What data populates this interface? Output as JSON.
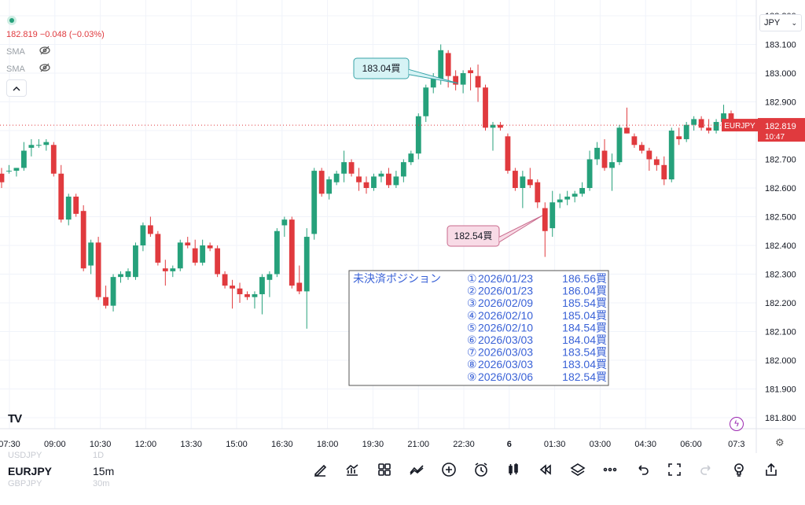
{
  "header": {
    "price_change": "182.819 −0.048 (−0.03%)",
    "indicators": [
      {
        "label": "SMA"
      },
      {
        "label": "SMA"
      }
    ],
    "currency": "JPY"
  },
  "chart_data": {
    "type": "candlestick",
    "symbol": "EURJPY",
    "interval": "15m",
    "y_ticks": [
      "183.200",
      "183.100",
      "183.000",
      "182.900",
      "182.800",
      "182.700",
      "182.600",
      "182.500",
      "182.400",
      "182.300",
      "182.200",
      "182.100",
      "182.000",
      "181.900",
      "181.800"
    ],
    "ylim": [
      181.755,
      183.255
    ],
    "x_ticks": [
      "07:30",
      "09:00",
      "10:30",
      "12:00",
      "13:30",
      "15:00",
      "16:30",
      "18:00",
      "19:30",
      "21:00",
      "22:30",
      "6",
      "01:30",
      "03:00",
      "04:30",
      "06:00",
      "07:3"
    ],
    "current_price": {
      "symbol": "EURJPY",
      "value": "182.819",
      "countdown": "10:47",
      "price": 182.819
    },
    "callouts": [
      {
        "label": "183.04買",
        "price": 183.04,
        "color": "#d6f3f5",
        "border": "#38a3a8"
      },
      {
        "label": "182.54買",
        "price": 182.54,
        "color": "#f8dbe6",
        "border": "#c86a8c"
      }
    ],
    "candles": [
      [
        182.65,
        182.67,
        182.6,
        182.62
      ],
      [
        182.66,
        182.68,
        182.65,
        182.66
      ],
      [
        182.66,
        182.67,
        182.64,
        182.67
      ],
      [
        182.67,
        182.76,
        182.66,
        182.73
      ],
      [
        182.74,
        182.77,
        182.71,
        182.75
      ],
      [
        182.75,
        182.77,
        182.74,
        182.75
      ],
      [
        182.75,
        182.77,
        182.73,
        182.76
      ],
      [
        182.75,
        182.76,
        182.64,
        182.65
      ],
      [
        182.65,
        182.68,
        182.48,
        182.49
      ],
      [
        182.49,
        182.58,
        182.47,
        182.57
      ],
      [
        182.57,
        182.58,
        182.5,
        182.51
      ],
      [
        182.52,
        182.54,
        182.31,
        182.32
      ],
      [
        182.33,
        182.42,
        182.3,
        182.41
      ],
      [
        182.41,
        182.43,
        182.21,
        182.22
      ],
      [
        182.22,
        182.26,
        182.18,
        182.19
      ],
      [
        182.19,
        182.3,
        182.17,
        182.29
      ],
      [
        182.29,
        182.31,
        182.27,
        182.3
      ],
      [
        182.29,
        182.32,
        182.28,
        182.31
      ],
      [
        182.29,
        182.41,
        182.28,
        182.4
      ],
      [
        182.4,
        182.48,
        182.38,
        182.47
      ],
      [
        182.47,
        182.5,
        182.43,
        182.44
      ],
      [
        182.44,
        182.45,
        182.33,
        182.34
      ],
      [
        182.32,
        182.35,
        182.26,
        182.31
      ],
      [
        182.31,
        182.33,
        182.29,
        182.32
      ],
      [
        182.32,
        182.42,
        182.31,
        182.41
      ],
      [
        182.41,
        182.43,
        182.39,
        182.4
      ],
      [
        182.39,
        182.42,
        182.33,
        182.34
      ],
      [
        182.34,
        182.42,
        182.33,
        182.4
      ],
      [
        182.4,
        182.41,
        182.38,
        182.39
      ],
      [
        182.39,
        182.4,
        182.29,
        182.3
      ],
      [
        182.3,
        182.31,
        182.25,
        182.26
      ],
      [
        182.26,
        182.28,
        182.18,
        182.25
      ],
      [
        182.25,
        182.27,
        182.2,
        182.23
      ],
      [
        182.23,
        182.24,
        182.21,
        182.22
      ],
      [
        182.22,
        182.24,
        182.18,
        182.23
      ],
      [
        182.23,
        182.3,
        182.16,
        182.29
      ],
      [
        182.28,
        182.31,
        182.22,
        182.3
      ],
      [
        182.3,
        182.46,
        182.29,
        182.45
      ],
      [
        182.47,
        182.5,
        182.43,
        182.49
      ],
      [
        182.49,
        182.5,
        182.25,
        182.26
      ],
      [
        182.27,
        182.33,
        182.23,
        182.24
      ],
      [
        182.24,
        182.46,
        182.11,
        182.43
      ],
      [
        182.44,
        182.67,
        182.42,
        182.66
      ],
      [
        182.66,
        182.67,
        182.57,
        182.58
      ],
      [
        182.58,
        182.64,
        182.56,
        182.63
      ],
      [
        182.62,
        182.66,
        182.61,
        182.65
      ],
      [
        182.65,
        182.73,
        182.62,
        182.69
      ],
      [
        182.69,
        182.7,
        182.64,
        182.65
      ],
      [
        182.64,
        182.67,
        182.59,
        182.62
      ],
      [
        182.62,
        182.64,
        182.58,
        182.6
      ],
      [
        182.6,
        182.65,
        182.59,
        182.64
      ],
      [
        182.64,
        182.66,
        182.62,
        182.65
      ],
      [
        182.65,
        182.67,
        182.6,
        182.61
      ],
      [
        182.61,
        182.66,
        182.6,
        182.64
      ],
      [
        182.64,
        182.7,
        182.62,
        182.69
      ],
      [
        182.69,
        182.73,
        182.68,
        182.72
      ],
      [
        182.72,
        182.86,
        182.7,
        182.85
      ],
      [
        182.85,
        182.96,
        182.83,
        182.95
      ],
      [
        182.95,
        183.0,
        182.93,
        182.98
      ],
      [
        182.98,
        183.1,
        182.96,
        183.08
      ],
      [
        183.07,
        183.08,
        182.95,
        182.99
      ],
      [
        182.99,
        183.01,
        182.94,
        182.96
      ],
      [
        182.96,
        183.01,
        182.93,
        183.0
      ],
      [
        183.01,
        183.02,
        182.94,
        183.0
      ],
      [
        182.99,
        183.03,
        182.9,
        182.95
      ],
      [
        182.95,
        182.96,
        182.8,
        182.81
      ],
      [
        182.81,
        182.83,
        182.73,
        182.82
      ],
      [
        182.82,
        182.83,
        182.8,
        182.81
      ],
      [
        182.78,
        182.79,
        182.65,
        182.66
      ],
      [
        182.66,
        182.67,
        182.59,
        182.6
      ],
      [
        182.6,
        182.66,
        182.53,
        182.64
      ],
      [
        182.63,
        182.67,
        182.6,
        182.61
      ],
      [
        182.62,
        182.63,
        182.53,
        182.55
      ],
      [
        182.53,
        182.55,
        182.36,
        182.45
      ],
      [
        182.46,
        182.59,
        182.43,
        182.55
      ],
      [
        182.55,
        182.58,
        182.53,
        182.56
      ],
      [
        182.56,
        182.59,
        182.54,
        182.57
      ],
      [
        182.57,
        182.59,
        182.55,
        182.58
      ],
      [
        182.58,
        182.62,
        182.57,
        182.6
      ],
      [
        182.6,
        182.73,
        182.59,
        182.7
      ],
      [
        182.7,
        182.76,
        182.68,
        182.74
      ],
      [
        182.73,
        182.77,
        182.66,
        182.67
      ],
      [
        182.67,
        182.72,
        182.59,
        182.69
      ],
      [
        182.69,
        182.82,
        182.68,
        182.81
      ],
      [
        182.81,
        182.88,
        182.79,
        182.79
      ],
      [
        182.78,
        182.79,
        182.74,
        182.75
      ],
      [
        182.75,
        182.76,
        182.72,
        182.73
      ],
      [
        182.73,
        182.74,
        182.66,
        182.7
      ],
      [
        182.7,
        182.71,
        182.66,
        182.68
      ],
      [
        182.68,
        182.71,
        182.61,
        182.63
      ],
      [
        182.63,
        182.81,
        182.62,
        182.8
      ],
      [
        182.78,
        182.81,
        182.75,
        182.77
      ],
      [
        182.77,
        182.83,
        182.76,
        182.82
      ],
      [
        182.82,
        182.85,
        182.8,
        182.84
      ],
      [
        182.84,
        182.85,
        182.8,
        182.81
      ],
      [
        182.81,
        182.84,
        182.79,
        182.8
      ],
      [
        182.8,
        182.84,
        182.79,
        182.83
      ],
      [
        182.83,
        182.89,
        182.82,
        182.86
      ],
      [
        182.86,
        182.87,
        182.8,
        182.82
      ]
    ]
  },
  "positions_note": {
    "title": "未決済ポジション",
    "rows": [
      {
        "no": "①",
        "date": "2026/01/23",
        "price": "186.56買"
      },
      {
        "no": "②",
        "date": "2026/01/23",
        "price": "186.04買"
      },
      {
        "no": "③",
        "date": "2026/02/09",
        "price": "185.54買"
      },
      {
        "no": "④",
        "date": "2026/02/10",
        "price": "185.04買"
      },
      {
        "no": "⑤",
        "date": "2026/02/10",
        "price": "184.54買"
      },
      {
        "no": "⑥",
        "date": "2026/03/03",
        "price": "184.04買"
      },
      {
        "no": "⑦",
        "date": "2026/03/03",
        "price": "183.54買"
      },
      {
        "no": "⑧",
        "date": "2026/03/03",
        "price": "183.04買"
      },
      {
        "no": "⑨",
        "date": "2026/03/06",
        "price": " 182.54買"
      }
    ]
  },
  "bottom_bar": {
    "symbol": "EURJPY",
    "interval": "15m",
    "ghost_symbols": [
      "USDJPY",
      "GBPJPY"
    ],
    "ghost_intervals": [
      "1D",
      "30m"
    ],
    "tools": [
      "pen-icon",
      "indicators-icon",
      "templates-icon",
      "compare-icon",
      "add-icon",
      "alert-icon",
      "candles-icon",
      "replay-icon",
      "layers-icon",
      "more-icon",
      "undo-icon",
      "fullscreen-icon",
      "redo-icon",
      "ideas-icon",
      "share-icon"
    ]
  },
  "colors": {
    "up": "#26a17b",
    "down": "#e03a3e",
    "note_text": "#3a62d7"
  }
}
